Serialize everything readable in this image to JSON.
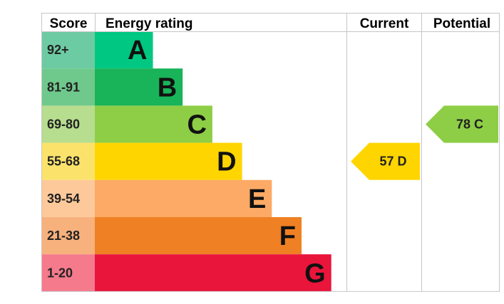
{
  "chart_data": {
    "type": "table",
    "headers": {
      "score": "Score",
      "rating": "Energy rating",
      "current": "Current",
      "potential": "Potential"
    },
    "bands": [
      {
        "score": "92+",
        "letter": "A",
        "color": "#6dcba3",
        "bar_color": "#00c781",
        "length": 1
      },
      {
        "score": "81-91",
        "letter": "B",
        "color": "#6fc98c",
        "bar_color": "#19b459",
        "length": 2
      },
      {
        "score": "69-80",
        "letter": "C",
        "color": "#b7dd8f",
        "bar_color": "#8dce46",
        "length": 3
      },
      {
        "score": "55-68",
        "letter": "D",
        "color": "#fbe36b",
        "bar_color": "#ffd500",
        "length": 4
      },
      {
        "score": "39-54",
        "letter": "E",
        "color": "#fdc99a",
        "bar_color": "#fcaa65",
        "length": 5
      },
      {
        "score": "21-38",
        "letter": "F",
        "color": "#f7b17d",
        "bar_color": "#ef8023",
        "length": 6
      },
      {
        "score": "1-20",
        "letter": "G",
        "color": "#f47a8c",
        "bar_color": "#e9153b",
        "length": 7
      }
    ],
    "current": {
      "value": 57,
      "letter": "D",
      "label": "57  D",
      "color": "#ffd500"
    },
    "potential": {
      "value": 78,
      "letter": "C",
      "label": "78  C",
      "color": "#8dce46"
    }
  }
}
